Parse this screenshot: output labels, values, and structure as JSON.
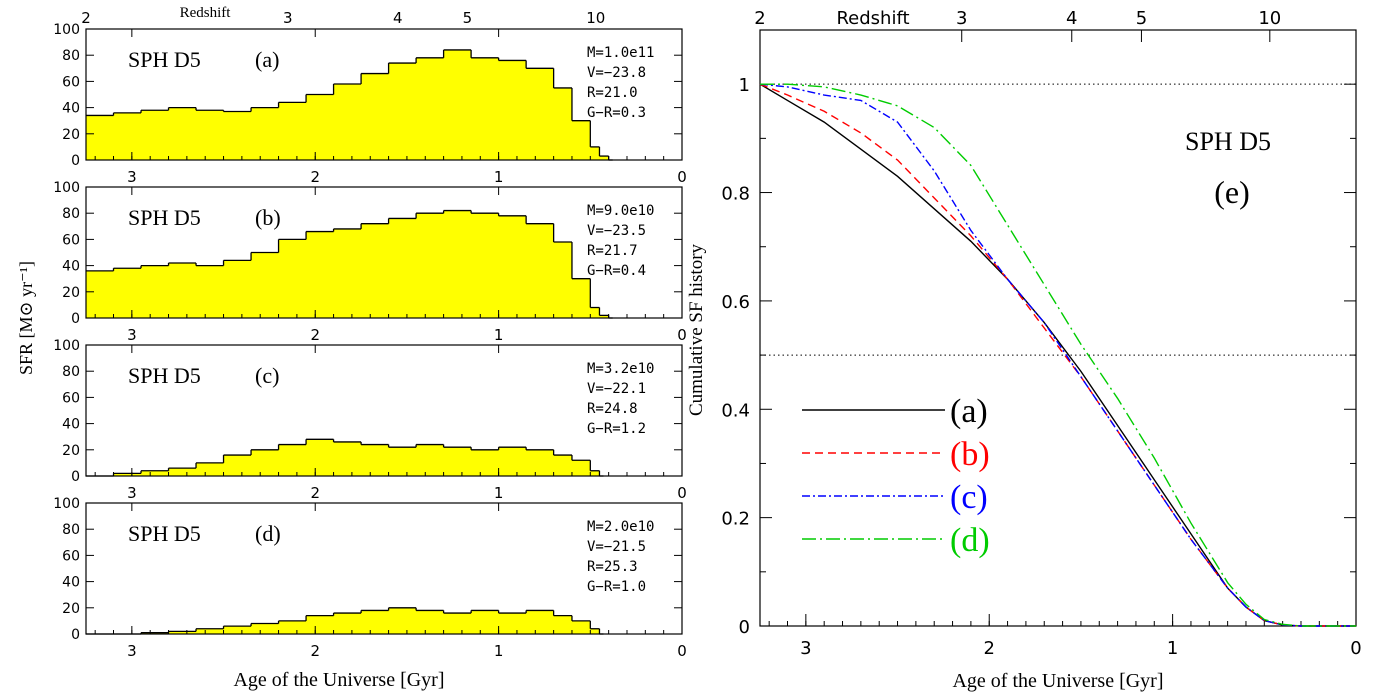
{
  "chart_data": [
    {
      "type": "bar",
      "title": "SPH D5 (a)",
      "title_words": [
        "SPH D5",
        "(a)"
      ],
      "ylim": [
        0,
        100
      ],
      "yticks": [
        0,
        20,
        40,
        60,
        80,
        100
      ],
      "xlim": [
        3.25,
        0
      ],
      "xticks": [
        3,
        2,
        1,
        0
      ],
      "redshift_ticks": [
        "2",
        "3",
        "4",
        "5",
        "10"
      ],
      "redshift_tick_ages": [
        3.25,
        2.15,
        1.55,
        1.17,
        0.47
      ],
      "redshift_label": "Redshift",
      "fill_color": "#ffff00",
      "stats": [
        "M=1.0e11",
        "V=−23.8",
        "R=21.0",
        "G−R=0.3"
      ],
      "x": [
        3.25,
        3.1,
        2.95,
        2.8,
        2.65,
        2.5,
        2.35,
        2.2,
        2.05,
        1.9,
        1.75,
        1.6,
        1.45,
        1.3,
        1.15,
        1.0,
        0.85,
        0.7,
        0.6,
        0.5,
        0.45,
        0.4
      ],
      "values": [
        34,
        36,
        38,
        40,
        38,
        37,
        40,
        44,
        50,
        58,
        66,
        74,
        78,
        84,
        78,
        76,
        70,
        55,
        30,
        10,
        3,
        0
      ]
    },
    {
      "type": "bar",
      "title": "SPH D5 (b)",
      "title_words": [
        "SPH D5",
        "(b)"
      ],
      "ylim": [
        0,
        100
      ],
      "yticks": [
        0,
        20,
        40,
        60,
        80,
        100
      ],
      "xlim": [
        3.25,
        0
      ],
      "xticks": [
        3,
        2,
        1,
        0
      ],
      "fill_color": "#ffff00",
      "ylabel": "SFR [M⊙ yr⁻¹]",
      "stats": [
        "M=9.0e10",
        "V=−23.5",
        "R=21.7",
        "G−R=0.4"
      ],
      "x": [
        3.25,
        3.1,
        2.95,
        2.8,
        2.65,
        2.5,
        2.35,
        2.2,
        2.05,
        1.9,
        1.75,
        1.6,
        1.45,
        1.3,
        1.15,
        1.0,
        0.85,
        0.7,
        0.6,
        0.5,
        0.45,
        0.4
      ],
      "values": [
        36,
        38,
        40,
        42,
        40,
        44,
        50,
        60,
        66,
        68,
        72,
        76,
        80,
        82,
        80,
        78,
        72,
        58,
        30,
        8,
        2,
        0
      ]
    },
    {
      "type": "bar",
      "title": "SPH D5 (c)",
      "title_words": [
        "SPH D5",
        "(c)"
      ],
      "ylim": [
        0,
        100
      ],
      "yticks": [
        0,
        20,
        40,
        60,
        80,
        100
      ],
      "xlim": [
        3.25,
        0
      ],
      "xticks": [
        3,
        2,
        1,
        0
      ],
      "fill_color": "#ffff00",
      "stats": [
        "M=3.2e10",
        "V=−22.1",
        "R=24.8",
        "G−R=1.2"
      ],
      "x": [
        3.25,
        3.1,
        2.95,
        2.8,
        2.65,
        2.5,
        2.35,
        2.2,
        2.05,
        1.9,
        1.75,
        1.6,
        1.45,
        1.3,
        1.15,
        1.0,
        0.85,
        0.7,
        0.6,
        0.5,
        0.45
      ],
      "values": [
        0,
        2,
        4,
        6,
        10,
        16,
        20,
        24,
        28,
        26,
        24,
        22,
        24,
        22,
        20,
        22,
        20,
        16,
        12,
        4,
        0
      ]
    },
    {
      "type": "bar",
      "title": "SPH D5 (d)",
      "title_words": [
        "SPH D5",
        "(d)"
      ],
      "ylim": [
        0,
        100
      ],
      "yticks": [
        0,
        20,
        40,
        60,
        80,
        100
      ],
      "xlim": [
        3.25,
        0
      ],
      "xticks": [
        3,
        2,
        1,
        0
      ],
      "fill_color": "#ffff00",
      "xlabel": "Age of the Universe [Gyr]",
      "stats": [
        "M=2.0e10",
        "V=−21.5",
        "R=25.3",
        "G−R=1.0"
      ],
      "x": [
        3.25,
        3.1,
        2.95,
        2.8,
        2.65,
        2.5,
        2.35,
        2.2,
        2.05,
        1.9,
        1.75,
        1.6,
        1.45,
        1.3,
        1.15,
        1.0,
        0.85,
        0.7,
        0.6,
        0.5,
        0.45
      ],
      "values": [
        0,
        0,
        1,
        2,
        4,
        6,
        8,
        10,
        14,
        16,
        18,
        20,
        18,
        16,
        18,
        16,
        18,
        14,
        10,
        4,
        0
      ]
    },
    {
      "type": "line",
      "title": "SPH D5",
      "panel_label": "(e)",
      "xlabel": "Age of the Universe [Gyr]",
      "ylabel": "Cumulative SF history",
      "redshift_label": "Redshift",
      "xlim": [
        3.25,
        0
      ],
      "ylim": [
        0,
        1.1
      ],
      "xticks": [
        3,
        2,
        1,
        0
      ],
      "yticks": [
        0,
        0.2,
        0.4,
        0.6,
        0.8,
        1
      ],
      "redshift_ticks": [
        "2",
        "3",
        "4",
        "5",
        "10"
      ],
      "redshift_tick_ages": [
        3.25,
        2.15,
        1.55,
        1.17,
        0.47
      ],
      "reference_lines": [
        1,
        0.5
      ],
      "x": [
        3.25,
        3.1,
        2.9,
        2.7,
        2.5,
        2.3,
        2.1,
        1.9,
        1.7,
        1.5,
        1.3,
        1.1,
        0.9,
        0.7,
        0.6,
        0.5,
        0.4,
        0.3,
        0.2,
        0.1,
        0
      ],
      "series": [
        {
          "name": "(a)",
          "color": "#000000",
          "style": "solid",
          "values": [
            1.0,
            0.97,
            0.93,
            0.88,
            0.83,
            0.77,
            0.71,
            0.64,
            0.56,
            0.47,
            0.37,
            0.27,
            0.17,
            0.07,
            0.035,
            0.01,
            0.002,
            0.0,
            0.0,
            0.0,
            0.0
          ]
        },
        {
          "name": "(b)",
          "color": "#ff0000",
          "style": "dashed",
          "values": [
            1.0,
            0.98,
            0.95,
            0.91,
            0.86,
            0.79,
            0.72,
            0.64,
            0.55,
            0.46,
            0.36,
            0.26,
            0.16,
            0.07,
            0.035,
            0.01,
            0.002,
            0.0,
            0.0,
            0.0,
            0.0
          ]
        },
        {
          "name": "(c)",
          "color": "#0000ff",
          "style": "dashdot",
          "values": [
            1.0,
            0.995,
            0.98,
            0.97,
            0.93,
            0.84,
            0.73,
            0.64,
            0.56,
            0.46,
            0.36,
            0.26,
            0.16,
            0.07,
            0.035,
            0.01,
            0.002,
            0.0,
            0.0,
            0.0,
            0.0
          ]
        },
        {
          "name": "(d)",
          "color": "#00cc00",
          "style": "longdash",
          "values": [
            1.0,
            1.0,
            0.995,
            0.98,
            0.96,
            0.92,
            0.85,
            0.74,
            0.63,
            0.52,
            0.42,
            0.31,
            0.19,
            0.08,
            0.04,
            0.012,
            0.003,
            0.0,
            0.0,
            0.0,
            0.0
          ]
        }
      ],
      "legend_placement": "center-left"
    }
  ]
}
